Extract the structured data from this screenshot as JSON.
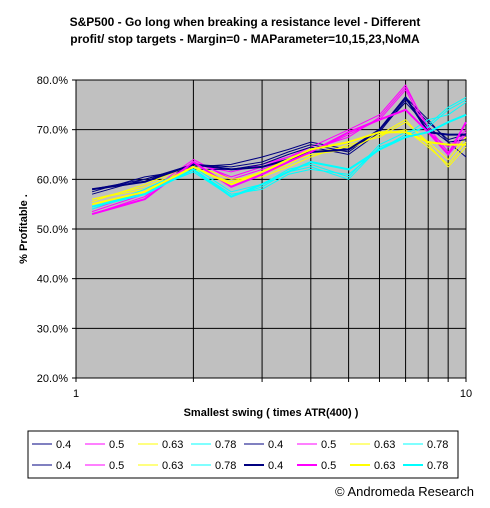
{
  "chart_data": {
    "type": "line",
    "title": "S&P500 - Go long when breaking a resistance level - Different\nprofit/ stop targets - Margin=0 - MAParameter=10,15,23,NoMA",
    "xlabel": "Smallest swing ( times ATR(400) )",
    "ylabel": "% Profitable .",
    "x_scale": "log",
    "xlim": [
      1,
      10
    ],
    "ylim": [
      0.2,
      0.8
    ],
    "x_ticks": [
      "1",
      "10"
    ],
    "y_ticks": [
      "20.0%",
      "30.0%",
      "40.0%",
      "50.0%",
      "60.0%",
      "70.0%",
      "80.0%"
    ],
    "grid": "horizontal lines + vertical lines at x=2,3,4,5,6,7,8,9,10",
    "plot_background": "#c0c0c0",
    "legend_position": "bottom",
    "x": [
      1.1,
      1.5,
      2.0,
      2.5,
      3.0,
      3.5,
      4.0,
      5.0,
      6.0,
      7.0,
      8.0,
      9.0,
      10.0
    ],
    "series": [
      {
        "name": "0.4",
        "color": "#000080",
        "width": 1,
        "values": [
          0.58,
          0.6,
          0.625,
          0.63,
          0.645,
          0.66,
          0.675,
          0.66,
          0.7,
          0.765,
          0.72,
          0.675,
          0.645
        ]
      },
      {
        "name": "0.5",
        "color": "#ff00ff",
        "width": 1,
        "values": [
          0.54,
          0.575,
          0.63,
          0.615,
          0.63,
          0.645,
          0.665,
          0.7,
          0.73,
          0.79,
          0.7,
          0.65,
          0.69
        ]
      },
      {
        "name": "0.63",
        "color": "#ffff00",
        "width": 1,
        "values": [
          0.56,
          0.585,
          0.625,
          0.59,
          0.61,
          0.63,
          0.655,
          0.665,
          0.69,
          0.72,
          0.67,
          0.625,
          0.665
        ]
      },
      {
        "name": "0.78",
        "color": "#00ffff",
        "width": 1,
        "values": [
          0.545,
          0.575,
          0.615,
          0.565,
          0.585,
          0.615,
          0.625,
          0.6,
          0.665,
          0.685,
          0.71,
          0.745,
          0.765
        ]
      },
      {
        "name": "0.4",
        "color": "#000080",
        "width": 1,
        "values": [
          0.575,
          0.605,
          0.62,
          0.62,
          0.63,
          0.65,
          0.665,
          0.65,
          0.695,
          0.76,
          0.715,
          0.68,
          0.69
        ]
      },
      {
        "name": "0.5",
        "color": "#ff00ff",
        "width": 1,
        "values": [
          0.535,
          0.57,
          0.64,
          0.6,
          0.62,
          0.64,
          0.655,
          0.69,
          0.72,
          0.78,
          0.695,
          0.665,
          0.7
        ]
      },
      {
        "name": "0.63",
        "color": "#ffff00",
        "width": 1,
        "values": [
          0.555,
          0.59,
          0.63,
          0.6,
          0.605,
          0.625,
          0.645,
          0.67,
          0.685,
          0.715,
          0.675,
          0.64,
          0.685
        ]
      },
      {
        "name": "0.78",
        "color": "#00ffff",
        "width": 1,
        "values": [
          0.55,
          0.57,
          0.62,
          0.57,
          0.58,
          0.61,
          0.62,
          0.61,
          0.66,
          0.69,
          0.72,
          0.73,
          0.755
        ]
      },
      {
        "name": "0.4",
        "color": "#000080",
        "width": 1,
        "values": [
          0.57,
          0.6,
          0.63,
          0.625,
          0.635,
          0.655,
          0.67,
          0.655,
          0.7,
          0.755,
          0.705,
          0.675,
          0.68
        ]
      },
      {
        "name": "0.5",
        "color": "#ff00ff",
        "width": 1,
        "values": [
          0.53,
          0.565,
          0.635,
          0.605,
          0.625,
          0.645,
          0.66,
          0.685,
          0.725,
          0.785,
          0.705,
          0.655,
          0.695
        ]
      },
      {
        "name": "0.63",
        "color": "#ffff00",
        "width": 1,
        "values": [
          0.56,
          0.58,
          0.62,
          0.595,
          0.615,
          0.635,
          0.65,
          0.66,
          0.69,
          0.7,
          0.665,
          0.63,
          0.675
        ]
      },
      {
        "name": "0.78",
        "color": "#00ffff",
        "width": 1,
        "values": [
          0.54,
          0.58,
          0.625,
          0.575,
          0.59,
          0.62,
          0.63,
          0.605,
          0.67,
          0.695,
          0.705,
          0.74,
          0.76
        ]
      },
      {
        "name": "0.4",
        "color": "#000080",
        "width": 2,
        "values": [
          0.58,
          0.595,
          0.63,
          0.62,
          0.625,
          0.64,
          0.655,
          0.66,
          0.7,
          0.765,
          0.695,
          0.69,
          0.69
        ]
      },
      {
        "name": "0.5",
        "color": "#ff00ff",
        "width": 2,
        "values": [
          0.53,
          0.56,
          0.635,
          0.585,
          0.61,
          0.635,
          0.655,
          0.695,
          0.72,
          0.74,
          0.695,
          0.65,
          0.715
        ]
      },
      {
        "name": "0.63",
        "color": "#ffff00",
        "width": 2,
        "values": [
          0.55,
          0.575,
          0.625,
          0.59,
          0.615,
          0.64,
          0.66,
          0.675,
          0.695,
          0.695,
          0.675,
          0.67,
          0.67
        ]
      },
      {
        "name": "0.78",
        "color": "#00ffff",
        "width": 2,
        "values": [
          0.545,
          0.57,
          0.62,
          0.565,
          0.59,
          0.615,
          0.635,
          0.62,
          0.66,
          0.685,
          0.695,
          0.715,
          0.73
        ]
      }
    ]
  },
  "footer": {
    "credit": "© Andromeda Research"
  }
}
